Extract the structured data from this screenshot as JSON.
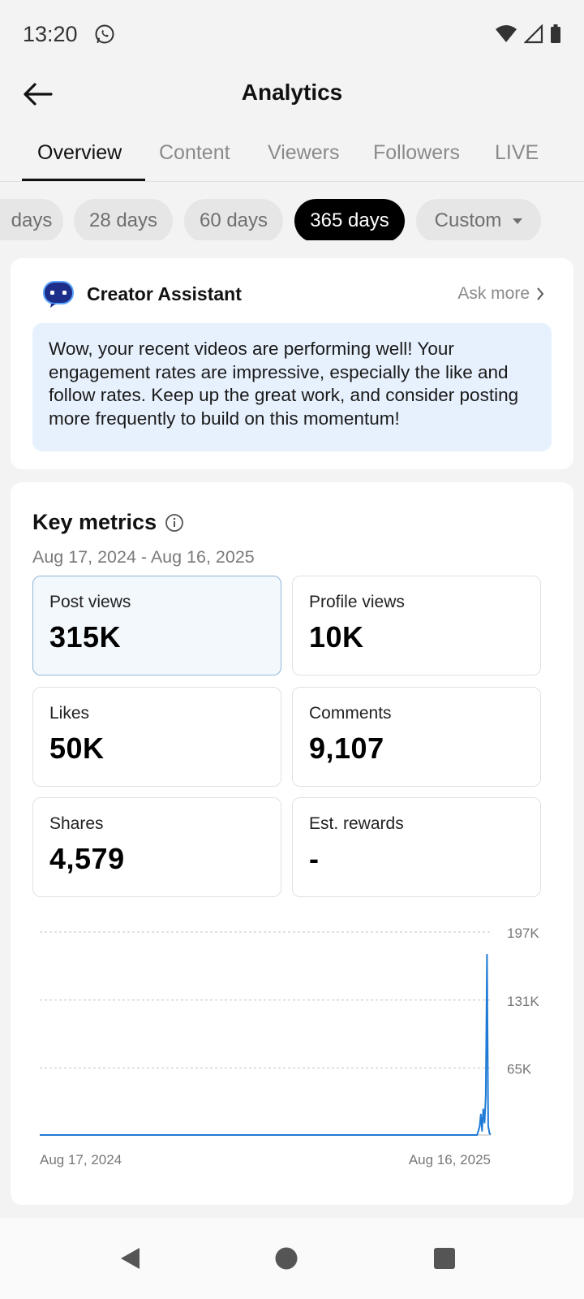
{
  "status_bar": {
    "time": "13:20"
  },
  "header": {
    "title": "Analytics"
  },
  "tabs": [
    {
      "label": "Overview",
      "active": true
    },
    {
      "label": "Content",
      "active": false
    },
    {
      "label": "Viewers",
      "active": false
    },
    {
      "label": "Followers",
      "active": false
    },
    {
      "label": "LIVE",
      "active": false
    }
  ],
  "ranges": [
    {
      "label": "days",
      "active": false
    },
    {
      "label": "28 days",
      "active": false
    },
    {
      "label": "60 days",
      "active": false
    },
    {
      "label": "365 days",
      "active": true
    },
    {
      "label": "Custom",
      "active": false
    }
  ],
  "assistant": {
    "name": "Creator Assistant",
    "ask_more": "Ask more",
    "message": "Wow, your recent videos are performing well! Your engagement rates are impressive, especially the like and follow rates. Keep up the great work, and consider posting more frequently to build on this momentum!"
  },
  "key_metrics": {
    "title": "Key metrics",
    "range": "Aug 17, 2024 - Aug 16, 2025",
    "items": [
      {
        "label": "Post views",
        "value": "315K",
        "selected": true
      },
      {
        "label": "Profile views",
        "value": "10K",
        "selected": false
      },
      {
        "label": "Likes",
        "value": "50K",
        "selected": false
      },
      {
        "label": "Comments",
        "value": "9,107",
        "selected": false
      },
      {
        "label": "Shares",
        "value": "4,579",
        "selected": false
      },
      {
        "label": "Est. rewards",
        "value": "-",
        "selected": false
      }
    ]
  },
  "colors": {
    "accent": "#1f7ad6",
    "active_chip": "#000000"
  },
  "chart_data": {
    "type": "line",
    "title": "",
    "xlabel": "",
    "ylabel": "",
    "x_tick_labels": [
      "Aug 17, 2024",
      "Aug 16, 2025"
    ],
    "y_tick_labels": [
      "197K",
      "131K",
      "65K"
    ],
    "ylim": [
      0,
      197000
    ],
    "grid": true,
    "series": [
      {
        "x": [
          "2025-08-03",
          "2025-08-05",
          "2025-08-07",
          "2025-08-08",
          "2025-08-09",
          "2025-08-10",
          "2025-08-11",
          "2025-08-12",
          "2025-08-13",
          "2025-08-14",
          "2025-08-15",
          "2025-08-16"
        ],
        "values": [
          0,
          0,
          8000,
          20000,
          4000,
          25000,
          12000,
          38000,
          175000,
          9000,
          1500,
          500
        ]
      }
    ]
  }
}
